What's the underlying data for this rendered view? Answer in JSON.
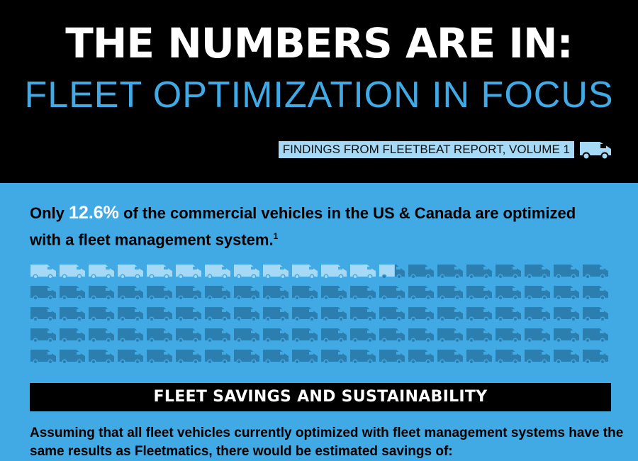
{
  "header": {
    "title": "THE NUMBERS ARE IN:",
    "subtitle": "FLEET OPTIMIZATION IN FOCUS",
    "source_label": "FINDINGS FROM FLEETBEAT REPORT, VOLUME 1",
    "source_icon": "van-icon"
  },
  "stat": {
    "prefix": "Only ",
    "percent": "12.6%",
    "text": " of the commercial vehicles in the US & Canada are optimized with a fleet management system.",
    "footnote": "1"
  },
  "vehicle_grid": {
    "total": 100,
    "optimized": 12.6,
    "columns": 20,
    "rows": 5,
    "optimized_color": "#a6d9f5",
    "other_color": "#2b7eae",
    "icon": "van-icon"
  },
  "section": {
    "banner": "FLEET SAVINGS AND SUSTAINABILITY",
    "text": "Assuming that all fleet vehicles currently optimized with fleet management systems have the same results as Fleetmatics, there would be estimated savings of:"
  },
  "colors": {
    "background_header": "#000000",
    "background_body": "#41a9e4",
    "accent": "#41a9e4",
    "light_blue": "#a6d9f5",
    "dark_blue": "#2b7eae"
  }
}
